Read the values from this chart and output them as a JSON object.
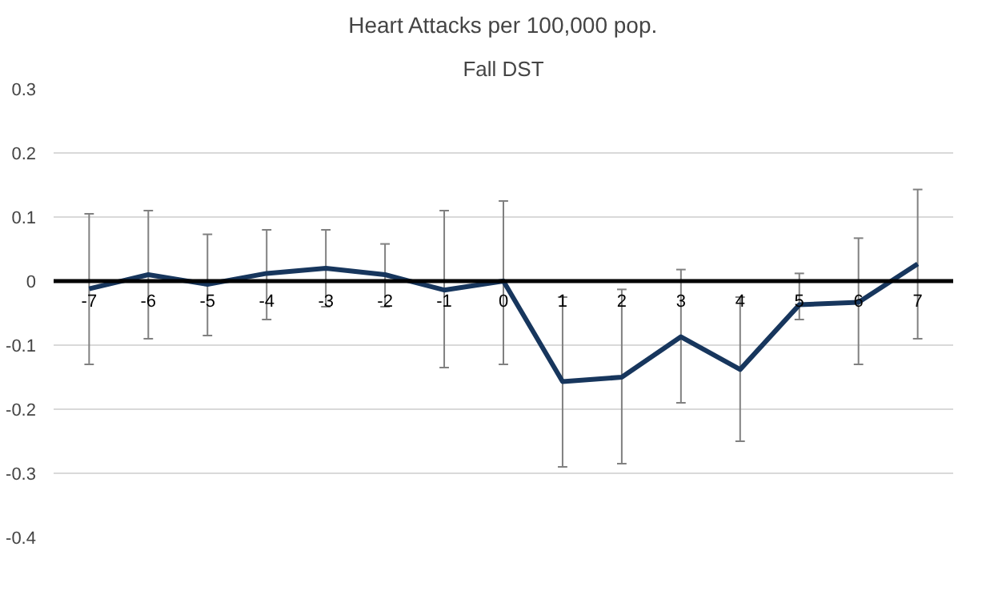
{
  "chart_data": {
    "type": "line",
    "title": "Heart Attacks per 100,000 pop.",
    "subtitle": "Fall DST",
    "categories": [
      "-7",
      "-6",
      "-5",
      "-4",
      "-3",
      "-2",
      "-1",
      "0",
      "1",
      "2",
      "3",
      "4",
      "5",
      "6",
      "7"
    ],
    "series": [
      {
        "color": "#17365d",
        "values": [
          -0.012,
          0.01,
          -0.005,
          0.012,
          0.02,
          0.01,
          -0.014,
          0.0,
          -0.157,
          -0.15,
          -0.087,
          -0.138,
          -0.037,
          -0.033,
          0.027
        ],
        "errors": [
          [
            -0.13,
            0.105
          ],
          [
            -0.09,
            0.11
          ],
          [
            -0.085,
            0.073
          ],
          [
            -0.06,
            0.08
          ],
          [
            -0.04,
            0.08
          ],
          [
            -0.04,
            0.058
          ],
          [
            -0.135,
            0.11
          ],
          [
            -0.13,
            0.125
          ],
          [
            -0.29,
            -0.025
          ],
          [
            -0.285,
            -0.013
          ],
          [
            -0.19,
            0.018
          ],
          [
            -0.25,
            -0.025
          ],
          [
            -0.06,
            0.012
          ],
          [
            -0.13,
            0.067
          ],
          [
            -0.09,
            0.143
          ]
        ]
      }
    ],
    "ylim": [
      -0.4,
      0.3
    ],
    "yticks": [
      -0.4,
      -0.3,
      -0.2,
      -0.1,
      0,
      0.1,
      0.2,
      0.3
    ],
    "grid": "y",
    "marker": "none",
    "line_style": "solid"
  }
}
